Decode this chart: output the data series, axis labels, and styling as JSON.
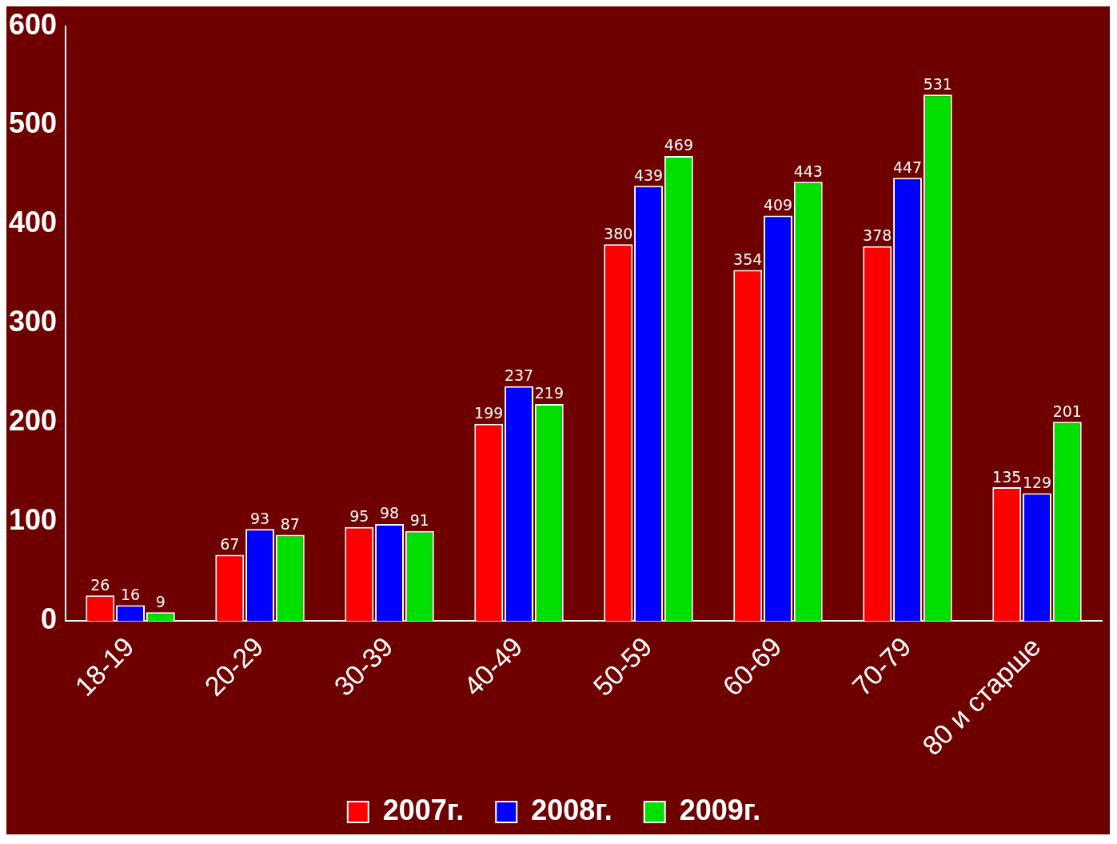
{
  "chart_data": {
    "type": "bar",
    "categories": [
      "18-19",
      "20-29",
      "30-39",
      "40-49",
      "50-59",
      "60-69",
      "70-79",
      "80 и старше"
    ],
    "series": [
      {
        "name": "2007г.",
        "color": "#ff0000",
        "values": [
          26,
          67,
          95,
          199,
          380,
          354,
          378,
          135
        ]
      },
      {
        "name": "2008г.",
        "color": "#0000ff",
        "values": [
          16,
          93,
          98,
          237,
          439,
          409,
          447,
          129
        ]
      },
      {
        "name": "2009г.",
        "color": "#00e000",
        "values": [
          9,
          87,
          91,
          219,
          469,
          443,
          531,
          201
        ]
      }
    ],
    "ylim": [
      0,
      600
    ],
    "yticks": [
      0,
      100,
      200,
      300,
      400,
      500,
      600
    ],
    "grid": false,
    "legend": "bottom",
    "data_labels": true
  }
}
